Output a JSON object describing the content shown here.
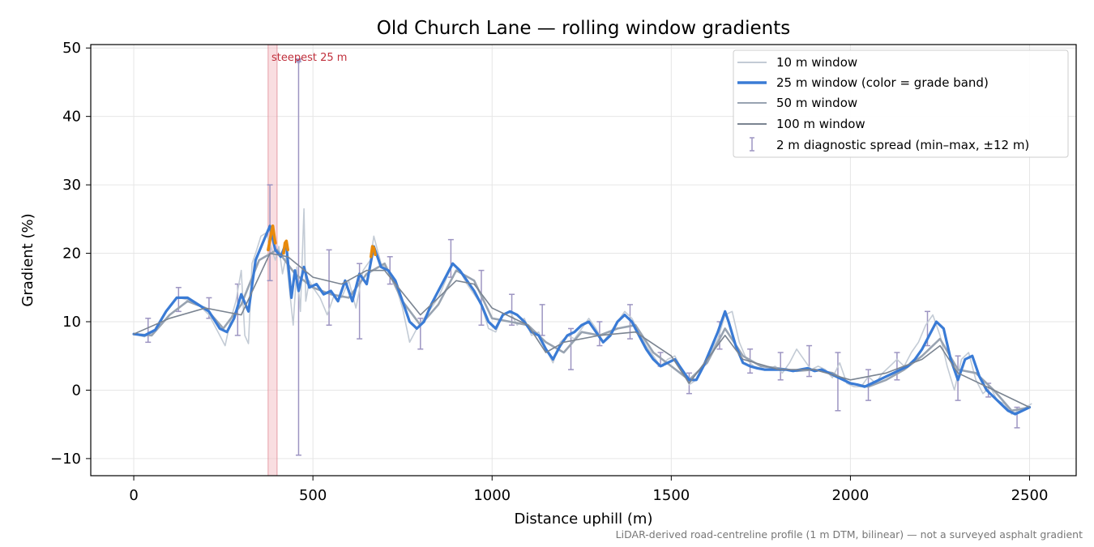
{
  "chart_data": {
    "type": "line",
    "title": "Old Church Lane — rolling window gradients",
    "xlabel": "Distance uphill (m)",
    "ylabel": "Gradient (%)",
    "xlim": [
      -120,
      2630
    ],
    "ylim": [
      -12.5,
      50.5
    ],
    "xticks": [
      0,
      500,
      1000,
      1500,
      2000,
      2500
    ],
    "yticks": [
      -10,
      0,
      10,
      20,
      30,
      40,
      50
    ],
    "grid": true,
    "legend_position": "top-right",
    "colors": {
      "w10": "#c3cbd5",
      "w25": "#3a7bd5",
      "w25_steep": "#e88a0c",
      "w50": "#98a3b1",
      "w100": "#7a8491",
      "spread": "#9d95c2",
      "highlight": "#f4c3c8",
      "annotation": "#c0303c"
    },
    "series": [
      {
        "name": "10 m window",
        "key": "w10",
        "x": [
          0,
          30,
          60,
          90,
          120,
          150,
          180,
          210,
          240,
          255,
          270,
          285,
          300,
          310,
          320,
          330,
          340,
          355,
          370,
          385,
          395,
          405,
          415,
          425,
          435,
          445,
          455,
          465,
          475,
          480,
          490,
          500,
          520,
          540,
          560,
          580,
          600,
          620,
          640,
          660,
          670,
          690,
          710,
          730,
          750,
          770,
          790,
          810,
          830,
          850,
          870,
          890,
          910,
          930,
          950,
          970,
          990,
          1010,
          1030,
          1050,
          1070,
          1090,
          1110,
          1130,
          1150,
          1170,
          1190,
          1210,
          1230,
          1250,
          1270,
          1290,
          1310,
          1330,
          1350,
          1370,
          1390,
          1410,
          1430,
          1450,
          1470,
          1490,
          1510,
          1530,
          1550,
          1570,
          1590,
          1610,
          1630,
          1650,
          1670,
          1690,
          1710,
          1730,
          1750,
          1770,
          1790,
          1810,
          1830,
          1850,
          1870,
          1890,
          1910,
          1930,
          1950,
          1970,
          1990,
          2010,
          2030,
          2050,
          2070,
          2090,
          2110,
          2130,
          2150,
          2170,
          2190,
          2210,
          2230,
          2250,
          2270,
          2290,
          2310,
          2330,
          2350,
          2370,
          2390,
          2410,
          2430,
          2450,
          2470,
          2490,
          2505
        ],
        "values": [
          8.2,
          7.8,
          8.6,
          11.5,
          13.6,
          13.2,
          12.5,
          11.0,
          8.0,
          6.5,
          10.2,
          13.0,
          17.5,
          8.0,
          6.8,
          18.5,
          20.0,
          22.5,
          23.0,
          20.5,
          19.0,
          21.0,
          17.0,
          19.5,
          14.5,
          9.5,
          18.0,
          11.5,
          26.5,
          13.0,
          16.0,
          15.0,
          13.5,
          11.0,
          14.0,
          13.5,
          16.0,
          12.0,
          17.5,
          19.0,
          22.5,
          18.5,
          17.5,
          15.5,
          12.0,
          7.0,
          9.0,
          10.5,
          12.0,
          13.5,
          16.0,
          18.5,
          17.5,
          15.5,
          14.0,
          12.5,
          9.0,
          8.5,
          11.0,
          11.5,
          9.5,
          10.5,
          8.0,
          8.5,
          6.0,
          4.0,
          7.0,
          8.0,
          7.5,
          9.0,
          10.5,
          9.0,
          7.0,
          8.5,
          10.0,
          11.5,
          10.5,
          8.5,
          6.5,
          5.0,
          3.5,
          4.5,
          5.0,
          3.0,
          0.8,
          1.5,
          3.5,
          5.5,
          7.5,
          11.0,
          11.5,
          7.0,
          4.5,
          3.5,
          3.2,
          3.0,
          3.5,
          2.5,
          4.0,
          6.0,
          4.5,
          3.0,
          3.5,
          3.0,
          1.8,
          4.0,
          1.0,
          0.5,
          0.5,
          2.0,
          1.0,
          2.5,
          3.5,
          4.5,
          3.5,
          5.5,
          7.0,
          9.5,
          11.0,
          8.0,
          3.5,
          0.0,
          4.5,
          5.5,
          1.5,
          -0.5,
          0.5,
          -1.5,
          -2.0,
          -3.5,
          -3.0,
          -2.5,
          -2.0
        ]
      },
      {
        "name": "25 m window (color = grade band)",
        "key": "w25",
        "x": [
          0,
          30,
          60,
          90,
          120,
          150,
          180,
          210,
          240,
          260,
          280,
          300,
          320,
          340,
          360,
          380,
          395,
          410,
          425,
          440,
          450,
          460,
          475,
          490,
          510,
          530,
          550,
          570,
          590,
          610,
          630,
          650,
          670,
          690,
          710,
          730,
          750,
          770,
          790,
          810,
          830,
          850,
          870,
          890,
          910,
          930,
          950,
          970,
          990,
          1010,
          1030,
          1050,
          1070,
          1090,
          1110,
          1130,
          1150,
          1170,
          1190,
          1210,
          1230,
          1250,
          1270,
          1290,
          1310,
          1330,
          1350,
          1370,
          1390,
          1410,
          1430,
          1450,
          1470,
          1490,
          1510,
          1530,
          1550,
          1570,
          1590,
          1610,
          1630,
          1650,
          1660,
          1680,
          1700,
          1720,
          1740,
          1760,
          1780,
          1800,
          1820,
          1840,
          1860,
          1880,
          1900,
          1920,
          1940,
          1960,
          1980,
          2000,
          2020,
          2040,
          2060,
          2080,
          2100,
          2120,
          2140,
          2160,
          2180,
          2200,
          2220,
          2240,
          2260,
          2280,
          2300,
          2320,
          2340,
          2360,
          2380,
          2400,
          2420,
          2440,
          2460,
          2480,
          2500
        ],
        "values": [
          8.2,
          8.0,
          8.8,
          11.5,
          13.5,
          13.5,
          12.5,
          11.5,
          9.0,
          8.5,
          10.5,
          14.0,
          11.5,
          19.0,
          21.5,
          24.0,
          20.5,
          19.5,
          21.5,
          13.5,
          17.5,
          14.5,
          18.0,
          15.0,
          15.5,
          14.0,
          14.5,
          13.0,
          16.0,
          13.0,
          17.0,
          15.5,
          21.0,
          18.0,
          17.5,
          16.0,
          13.0,
          10.0,
          9.0,
          10.0,
          12.5,
          14.5,
          16.5,
          18.5,
          17.5,
          16.0,
          14.5,
          12.5,
          10.0,
          9.0,
          11.0,
          11.5,
          11.0,
          10.0,
          8.5,
          8.0,
          6.0,
          4.5,
          6.5,
          8.0,
          8.5,
          9.5,
          10.0,
          8.5,
          7.0,
          8.0,
          10.0,
          11.0,
          10.0,
          8.0,
          6.0,
          4.5,
          3.5,
          4.0,
          4.5,
          3.0,
          1.5,
          1.5,
          3.5,
          6.0,
          8.5,
          11.5,
          10.0,
          6.5,
          4.0,
          3.5,
          3.2,
          3.0,
          3.0,
          3.0,
          3.0,
          2.8,
          3.0,
          3.2,
          2.8,
          3.0,
          2.5,
          2.0,
          1.5,
          1.0,
          0.8,
          0.5,
          1.0,
          1.5,
          2.0,
          2.5,
          3.0,
          3.5,
          4.5,
          6.0,
          8.0,
          10.0,
          9.0,
          4.5,
          1.5,
          4.5,
          5.0,
          2.0,
          0.0,
          -1.0,
          -2.0,
          -3.0,
          -3.5,
          -3.0,
          -2.5
        ]
      },
      {
        "name": "50 m window",
        "key": "w50",
        "x": [
          0,
          50,
          100,
          150,
          200,
          250,
          300,
          350,
          400,
          450,
          500,
          550,
          600,
          650,
          700,
          750,
          800,
          850,
          900,
          950,
          1000,
          1050,
          1100,
          1150,
          1200,
          1250,
          1300,
          1350,
          1400,
          1450,
          1500,
          1550,
          1600,
          1650,
          1700,
          1750,
          1800,
          1850,
          1900,
          1950,
          2000,
          2050,
          2100,
          2150,
          2200,
          2250,
          2300,
          2350,
          2400,
          2450,
          2500
        ],
        "values": [
          8.2,
          8.0,
          11.0,
          13.0,
          12.0,
          9.0,
          12.5,
          19.0,
          20.5,
          17.0,
          15.0,
          14.0,
          13.5,
          17.0,
          18.5,
          13.0,
          9.5,
          12.5,
          17.5,
          16.0,
          10.5,
          10.0,
          9.5,
          7.0,
          5.5,
          8.5,
          8.0,
          9.0,
          9.5,
          5.5,
          3.5,
          1.5,
          4.0,
          9.0,
          5.0,
          3.5,
          3.2,
          2.8,
          3.0,
          2.5,
          1.0,
          0.5,
          1.5,
          3.0,
          5.0,
          7.5,
          3.0,
          2.5,
          0.0,
          -3.0,
          -2.5
        ]
      },
      {
        "name": "100 m window",
        "key": "w100",
        "x": [
          0,
          100,
          200,
          300,
          380,
          430,
          500,
          580,
          650,
          700,
          800,
          900,
          950,
          1000,
          1100,
          1150,
          1200,
          1300,
          1400,
          1500,
          1550,
          1600,
          1650,
          1700,
          1800,
          1900,
          2000,
          2100,
          2200,
          2250,
          2300,
          2400,
          2500
        ],
        "values": [
          8.2,
          10.5,
          12.0,
          11.0,
          20.0,
          19.5,
          16.5,
          15.5,
          17.5,
          17.5,
          11.0,
          16.0,
          15.5,
          12.0,
          9.5,
          5.5,
          7.0,
          8.0,
          8.5,
          5.0,
          1.0,
          4.5,
          8.0,
          4.5,
          3.0,
          3.0,
          1.5,
          2.5,
          4.5,
          6.5,
          2.5,
          0.0,
          -2.5
        ]
      }
    ],
    "steep_segments": [
      {
        "x": [
          375,
          382,
          388,
          395
        ],
        "values": [
          20.5,
          22.5,
          24.0,
          21.5
        ]
      },
      {
        "x": [
          418,
          422,
          426,
          430
        ],
        "values": [
          20.0,
          21.5,
          21.8,
          20.5
        ]
      },
      {
        "x": [
          662,
          666,
          670,
          674
        ],
        "values": [
          19.5,
          21.0,
          20.8,
          19.8
        ]
      }
    ],
    "error_bars": {
      "name": "2 m diagnostic spread (min–max, ±12 m)",
      "x": [
        40,
        125,
        210,
        290,
        380,
        460,
        545,
        630,
        715,
        800,
        885,
        970,
        1055,
        1140,
        1220,
        1300,
        1385,
        1470,
        1550,
        1635,
        1720,
        1805,
        1885,
        1965,
        2050,
        2130,
        2215,
        2300,
        2385,
        2465
      ],
      "low": [
        7.0,
        11.5,
        10.5,
        8.0,
        16.0,
        -9.5,
        9.5,
        7.5,
        15.5,
        6.0,
        16.5,
        9.5,
        9.5,
        8.0,
        3.0,
        6.5,
        7.5,
        3.5,
        -0.5,
        6.0,
        2.5,
        1.5,
        2.0,
        -3.0,
        -1.5,
        1.5,
        6.5,
        -1.5,
        -1.0,
        -5.5
      ],
      "high": [
        10.5,
        15.0,
        13.5,
        15.5,
        30.0,
        48.0,
        20.5,
        18.5,
        19.5,
        10.5,
        22.0,
        17.5,
        14.0,
        12.5,
        9.0,
        10.0,
        12.5,
        5.5,
        2.5,
        10.0,
        6.0,
        5.5,
        6.5,
        5.5,
        3.0,
        5.5,
        11.5,
        5.0,
        1.0,
        -2.5
      ]
    },
    "highlight_band": {
      "x0": 375,
      "x1": 400,
      "label": "steepest 25 m"
    },
    "footnote": "LiDAR-derived road-centreline profile (1 m DTM, bilinear) — not a surveyed asphalt gradient"
  }
}
